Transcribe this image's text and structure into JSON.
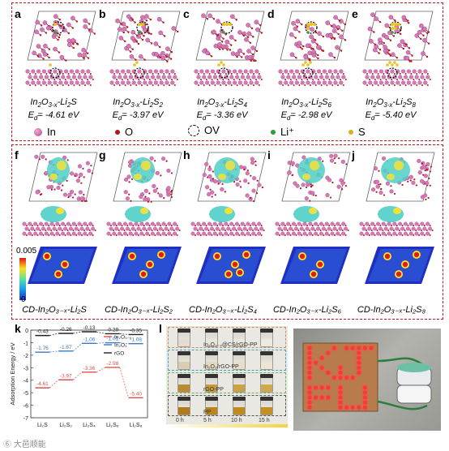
{
  "top_panels": [
    {
      "letter": "a",
      "formula_parts": [
        "In",
        "2",
        "O",
        "3-x",
        "-Li",
        "2",
        "S"
      ],
      "energy": "E",
      "energy_sub": "d",
      "energy_val": "= -4.61 eV"
    },
    {
      "letter": "b",
      "formula_parts": [
        "In",
        "2",
        "O",
        "3-x",
        "-Li",
        "2",
        "S",
        "2"
      ],
      "energy": "E",
      "energy_sub": "d",
      "energy_val": "= -3.97 eV"
    },
    {
      "letter": "c",
      "formula_parts": [
        "In",
        "2",
        "O",
        "3-x",
        "-Li",
        "2",
        "S",
        "4"
      ],
      "energy": "E",
      "energy_sub": "d",
      "energy_val": "= -3.36 eV"
    },
    {
      "letter": "d",
      "formula_parts": [
        "In",
        "2",
        "O",
        "3-x",
        "-Li",
        "2",
        "S",
        "6"
      ],
      "energy": "E",
      "energy_sub": "d",
      "energy_val": "= -2.98 eV"
    },
    {
      "letter": "e",
      "formula_parts": [
        "In",
        "2",
        "O",
        "3-x",
        "-Li",
        "2",
        "S",
        "8"
      ],
      "energy": "E",
      "energy_sub": "d",
      "energy_val": "= -5.40 eV"
    }
  ],
  "legend": [
    {
      "label": "In",
      "color": "#c65ba0",
      "kind": "dot"
    },
    {
      "label": "O",
      "color": "#b0181f",
      "kind": "small-dot"
    },
    {
      "label": "OV",
      "color": "#000000",
      "kind": "dashed"
    },
    {
      "label": "Li⁺",
      "color": "#2f9a44",
      "kind": "small-dot"
    },
    {
      "label": "S",
      "color": "#d8b21a",
      "kind": "small-dot"
    }
  ],
  "mid_panels": [
    {
      "letter": "f",
      "caption": "CD-In₂O₃₋ₓ-Li₂S"
    },
    {
      "letter": "g",
      "caption": "CD-In₂O₃₋ₓ-Li₂S₂"
    },
    {
      "letter": "h",
      "caption": "CD-In₂O₃₋ₓ-Li₂S₄"
    },
    {
      "letter": "i",
      "caption": "CD-In₂O₃₋ₓ-Li₂S₆"
    },
    {
      "letter": "j",
      "caption": "CD-In₂O₃₋ₓ-Li₂S₈"
    }
  ],
  "colorbar": {
    "max": "0.005",
    "min": "0"
  },
  "panel_k": {
    "letter": "k",
    "ylabel": "Adsorption Energy / eV",
    "chart_data": {
      "type": "line",
      "categories": [
        "Li₂S",
        "Li₂S₂",
        "Li₂S₄",
        "Li₂S₆",
        "Li₂S₈"
      ],
      "series": [
        {
          "name": "In₂O₃₋ₓ",
          "color": "#d9534f",
          "values": [
            -4.61,
            -3.97,
            -3.36,
            -2.98,
            -5.4
          ]
        },
        {
          "name": "In₂O₃",
          "color": "#3a78c2",
          "values": [
            -1.76,
            -1.67,
            -1.06,
            -1.01,
            -1.08
          ]
        },
        {
          "name": "rGO",
          "color": "#222222",
          "values": [
            -0.43,
            -0.26,
            -0.13,
            -0.29,
            -0.35
          ]
        }
      ],
      "ylim": [
        -7,
        0
      ],
      "yticks": [
        -7,
        -6,
        -5,
        -4,
        -3,
        -2,
        -1,
        0
      ],
      "value_labels": [
        [
          "-4.61",
          "-3.97",
          "-3.36",
          "-2.98",
          "-5.40"
        ],
        [
          "-1.76",
          "-1.67",
          "-1.06",
          "-1.01",
          "-1.08"
        ],
        [
          "-0.43",
          "-0.26",
          "-0.13",
          "-0.29",
          "-0.35"
        ]
      ]
    }
  },
  "panel_l": {
    "letter": "l",
    "row_labels": [
      "In₂O₃₋ₓ@CS/rGO-PP",
      "In₂O₃/rGO-PP",
      "rGO-PP",
      "PP"
    ],
    "time_labels": [
      "0 h",
      "5 h",
      "10 h",
      "15 h"
    ]
  },
  "panel_m": {
    "letter": "m"
  },
  "watermark": "⑥ 大邑顺能"
}
